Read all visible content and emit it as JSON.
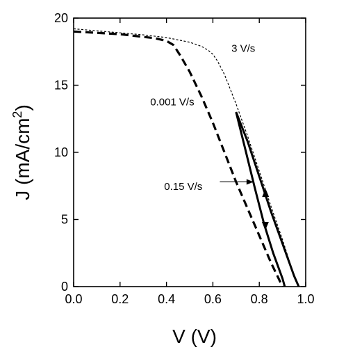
{
  "chart_data": {
    "type": "line",
    "title": "",
    "xlabel": "V (V)",
    "ylabel_base": "J (mA/cm",
    "ylabel_sup": "2",
    "ylabel_close": ")",
    "xlim": [
      0.0,
      1.0
    ],
    "ylim": [
      0,
      20
    ],
    "xticks": [
      0.0,
      0.2,
      0.4,
      0.6,
      0.8,
      1.0
    ],
    "xtick_labels": [
      "0.0",
      "0.2",
      "0.4",
      "0.6",
      "0.8",
      "1.0"
    ],
    "yticks": [
      0,
      5,
      10,
      15,
      20
    ],
    "ytick_labels": [
      "0",
      "5",
      "10",
      "15",
      "20"
    ],
    "grid": false,
    "legend": "none",
    "series": [
      {
        "style": "dashed-thin",
        "x": [
          0.0,
          0.1,
          0.2,
          0.3,
          0.4,
          0.5,
          0.55,
          0.58,
          0.6,
          0.62,
          0.65,
          0.7,
          0.75,
          0.8,
          0.85,
          0.9,
          0.95,
          0.97
        ],
        "y": [
          19.2,
          19.05,
          18.9,
          18.75,
          18.55,
          18.2,
          17.9,
          17.6,
          17.3,
          16.8,
          15.8,
          13.6,
          11.2,
          8.6,
          6.0,
          3.5,
          0.8,
          0
        ]
      },
      {
        "style": "dashed-thick",
        "x": [
          0.0,
          0.1,
          0.2,
          0.3,
          0.35,
          0.4,
          0.43,
          0.46,
          0.5,
          0.55,
          0.6,
          0.65,
          0.7,
          0.75,
          0.8,
          0.85,
          0.9
        ],
        "y": [
          19.0,
          18.9,
          18.8,
          18.6,
          18.5,
          18.3,
          18.0,
          17.2,
          16.0,
          14.2,
          12.2,
          10.0,
          7.8,
          5.8,
          3.8,
          1.8,
          0
        ]
      },
      {
        "style": "solid",
        "x": [
          0.7,
          0.74,
          0.78,
          0.82,
          0.86,
          0.9,
          0.91
        ],
        "y": [
          13.0,
          10.2,
          7.4,
          4.7,
          2.5,
          0.6,
          0
        ]
      },
      {
        "style": "solid",
        "x": [
          0.7,
          0.75,
          0.8,
          0.85,
          0.9,
          0.95,
          0.97
        ],
        "y": [
          13.0,
          10.8,
          8.2,
          5.6,
          3.2,
          0.8,
          0
        ]
      }
    ],
    "markers": [
      {
        "kind": "arrow-down",
        "x": 0.826,
        "y": 4.2
      },
      {
        "kind": "arrow-up",
        "x": 0.827,
        "y": 7.3
      }
    ],
    "annotations": [
      {
        "text": "3 V/s",
        "x": 0.68,
        "y": 17.5
      },
      {
        "text": "0.001 V/s",
        "x": 0.33,
        "y": 13.5
      },
      {
        "text": "0.15 V/s",
        "x": 0.39,
        "y": 7.2
      }
    ],
    "pointer": {
      "from_x": 0.63,
      "from_y": 7.8,
      "to_x": 0.775,
      "to_y": 7.8
    }
  }
}
